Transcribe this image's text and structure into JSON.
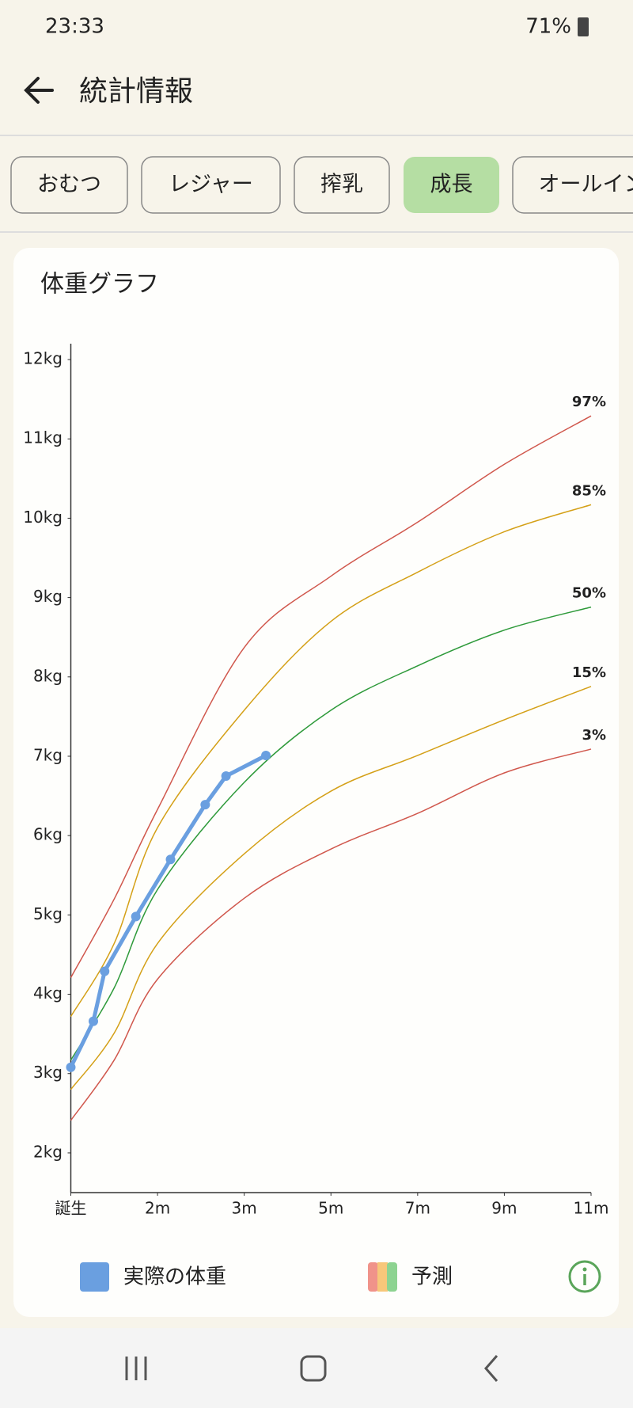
{
  "status_bar": {
    "time": "23:33",
    "battery": "71%"
  },
  "header": {
    "title": "統計情報"
  },
  "tabs": [
    "おむつ",
    "レジャー",
    "搾乳",
    "成長",
    "オールイン"
  ],
  "active_tab": 3,
  "chart_data": {
    "type": "line",
    "title": "体重グラフ",
    "xlim": [
      0,
      6
    ],
    "xticks": [
      {
        "value": 0,
        "label": "誕生"
      },
      {
        "value": 1,
        "label": "2m"
      },
      {
        "value": 2,
        "label": "3m"
      },
      {
        "value": 3,
        "label": "5m"
      },
      {
        "value": 4,
        "label": "7m"
      },
      {
        "value": 5,
        "label": "9m"
      },
      {
        "value": 6,
        "label": "11m"
      }
    ],
    "ylim": [
      1.5,
      12.2
    ],
    "yticks": [
      {
        "value": 2,
        "label": "2kg"
      },
      {
        "value": 3,
        "label": "3kg"
      },
      {
        "value": 4,
        "label": "4kg"
      },
      {
        "value": 5,
        "label": "5kg"
      },
      {
        "value": 6,
        "label": "6kg"
      },
      {
        "value": 7,
        "label": "7kg"
      },
      {
        "value": 8,
        "label": "8kg"
      },
      {
        "value": 9,
        "label": "9kg"
      },
      {
        "value": 10,
        "label": "10kg"
      },
      {
        "value": 11,
        "label": "11kg"
      },
      {
        "value": 12,
        "label": "12kg"
      }
    ],
    "series": [
      {
        "name": "97%",
        "color": "#d0574c",
        "x": [
          0,
          0.5,
          1,
          2,
          3,
          4,
          5,
          6
        ],
        "values": [
          4.21,
          5.2,
          6.33,
          8.37,
          9.27,
          9.95,
          10.68,
          11.29
        ]
      },
      {
        "name": "85%",
        "color": "#d4a017",
        "x": [
          0,
          0.5,
          1,
          2,
          3,
          4,
          5,
          6
        ],
        "values": [
          3.72,
          4.64,
          6.1,
          7.58,
          8.7,
          9.32,
          9.83,
          10.17
        ]
      },
      {
        "name": "50%",
        "color": "#2e9a3a",
        "x": [
          0,
          0.5,
          1,
          2,
          3,
          4,
          5,
          6
        ],
        "values": [
          3.17,
          4.08,
          5.32,
          6.67,
          7.58,
          8.14,
          8.59,
          8.88
        ]
      },
      {
        "name": "15%",
        "color": "#d4a017",
        "x": [
          0,
          0.5,
          1,
          2,
          3,
          4,
          5,
          6
        ],
        "values": [
          2.8,
          3.51,
          4.64,
          5.77,
          6.56,
          7.01,
          7.46,
          7.88
        ]
      },
      {
        "name": "3%",
        "color": "#d0574c",
        "x": [
          0,
          0.5,
          1,
          2,
          3,
          4,
          5,
          6
        ],
        "values": [
          2.41,
          3.17,
          4.19,
          5.21,
          5.83,
          6.28,
          6.79,
          7.09
        ]
      },
      {
        "name": "実際の体重",
        "color": "#6a9fe0",
        "x": [
          0,
          0.26,
          0.39,
          0.75,
          1.15,
          1.55,
          1.79,
          2.25
        ],
        "values": [
          3.08,
          3.66,
          4.29,
          4.98,
          5.7,
          6.39,
          6.75,
          7.01
        ]
      }
    ],
    "prediction_label": "予測"
  }
}
